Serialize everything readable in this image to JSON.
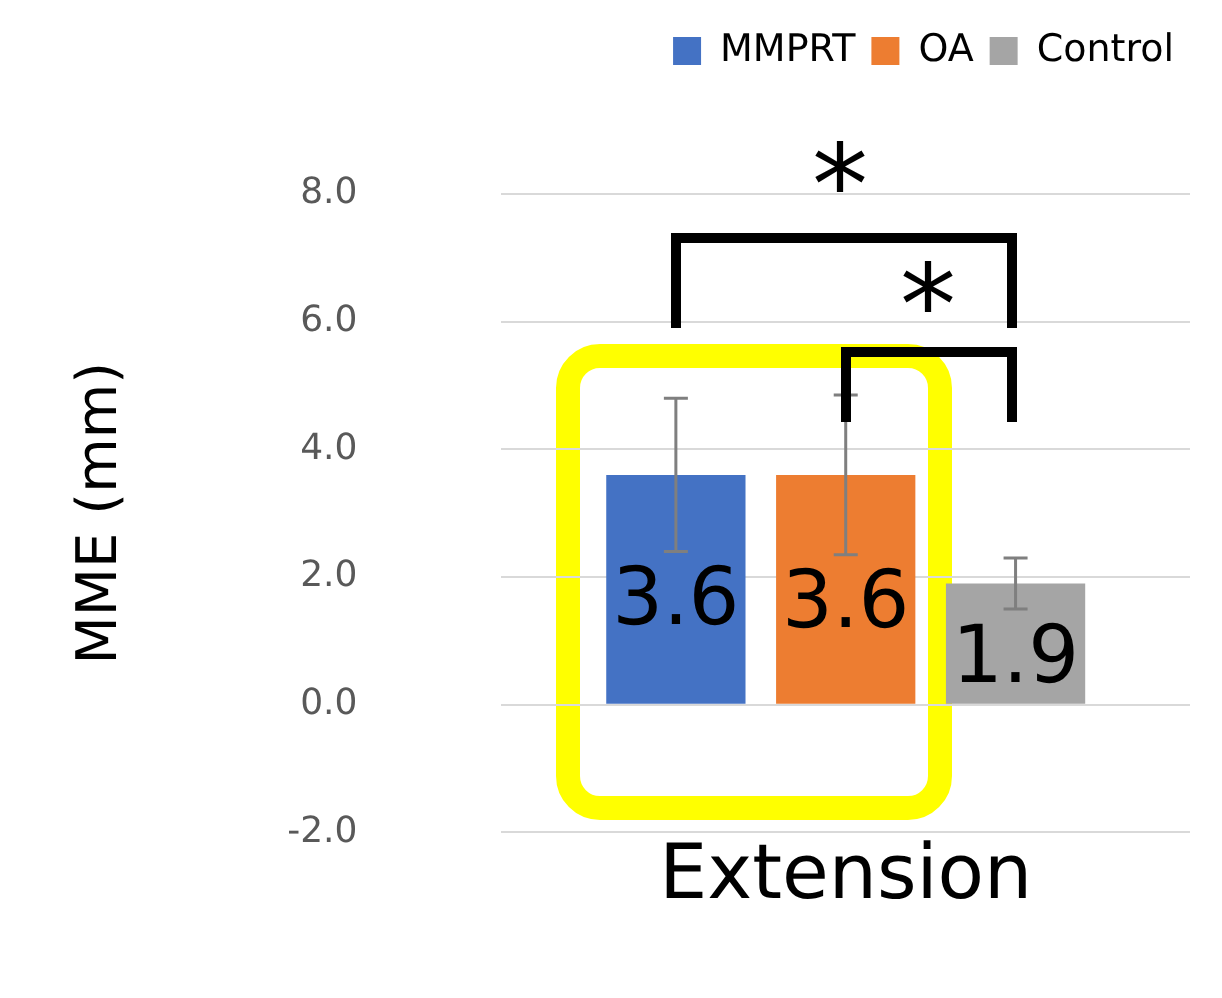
{
  "chart_data": {
    "type": "bar",
    "ylabel": "MME (mm)",
    "categories": [
      "Extension"
    ],
    "series": [
      {
        "name": "MMPRT",
        "color": "#4472c4",
        "values": [
          3.6
        ],
        "errors": [
          1.2
        ]
      },
      {
        "name": "OA",
        "color": "#ed7d31",
        "values": [
          3.6
        ],
        "errors": [
          1.25
        ]
      },
      {
        "name": "Control",
        "color": "#a5a5a5",
        "values": [
          1.9
        ],
        "errors": [
          0.4
        ]
      }
    ],
    "ylim": [
      -2,
      8
    ],
    "yticks": [
      {
        "value": -2,
        "label": "-2.0"
      },
      {
        "value": 0,
        "label": "0.0"
      },
      {
        "value": 2,
        "label": "2.0"
      },
      {
        "value": 4,
        "label": "4.0"
      },
      {
        "value": 6,
        "label": "6.0"
      },
      {
        "value": 8,
        "label": "8.0"
      }
    ],
    "grid": "y",
    "legend": "top right",
    "data_labels": true,
    "annotations": [
      "*",
      "*"
    ]
  }
}
